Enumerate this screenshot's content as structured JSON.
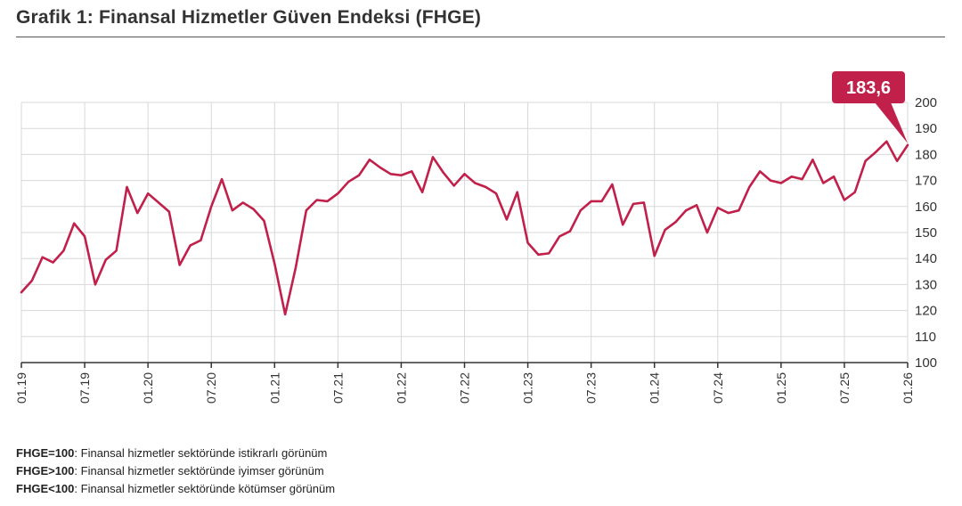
{
  "header": {
    "title": "Grafik 1: Finansal Hizmetler Güven Endeksi (FHGE)"
  },
  "notes": [
    {
      "key": "FHGE=100",
      "text": ": Finansal hizmetler sektöründe istikrarlı görünüm"
    },
    {
      "key": "FHGE>100",
      "text": ": Finansal hizmetler sektöründe iyimser görünüm"
    },
    {
      "key": "FHGE<100",
      "text": ": Finansal hizmetler sektöründe kötümser görünüm"
    }
  ],
  "colors": {
    "line": "#c0204a",
    "callout": "#c0204a",
    "grid": "#d8d8d8",
    "axis": "#333333"
  },
  "chart_data": {
    "type": "line",
    "title": "",
    "xlabel": "",
    "ylabel": "",
    "ylim": [
      100,
      200
    ],
    "yticks": [
      100,
      110,
      120,
      130,
      140,
      150,
      160,
      170,
      180,
      190,
      200
    ],
    "x_start_month": "2019-01",
    "x_tick_labels": [
      "01.19",
      "07.19",
      "01.20",
      "07.20",
      "01.21",
      "07.21",
      "01.22",
      "07.22",
      "01.23",
      "07.23",
      "01.24",
      "07.24",
      "01.25",
      "07.25",
      "01.26"
    ],
    "grid": true,
    "callout": {
      "label": "183,6",
      "month": "2026-01",
      "value": 183.6
    },
    "series": [
      {
        "values": [
          127.0,
          131.5,
          140.5,
          138.5,
          143.0,
          153.5,
          148.5,
          130.0,
          139.5,
          143.0,
          167.5,
          157.5,
          165.0,
          161.5,
          158.0,
          137.5,
          145.0,
          147.0,
          160.0,
          170.5,
          158.5,
          161.5,
          159.0,
          154.5,
          138.0,
          118.5,
          136.5,
          158.5,
          162.5,
          162.0,
          165.0,
          169.5,
          172.0,
          178.0,
          175.0,
          172.5,
          172.0,
          173.5,
          165.5,
          179.0,
          173.0,
          168.0,
          172.5,
          169.0,
          167.5,
          165.0,
          155.0,
          165.5,
          146.0,
          141.5,
          142.0,
          148.5,
          150.5,
          158.5,
          162.0,
          162.0,
          168.5,
          153.0,
          161.0,
          161.5,
          141.0,
          151.0,
          154.0,
          158.5,
          160.5,
          150.0,
          159.5,
          157.5,
          158.5,
          167.5,
          173.5,
          170.0,
          169.0,
          171.5,
          170.5,
          178.0,
          169.0,
          171.5,
          162.5,
          165.5,
          177.5,
          181.0,
          185.0,
          177.5,
          183.6
        ]
      }
    ]
  }
}
